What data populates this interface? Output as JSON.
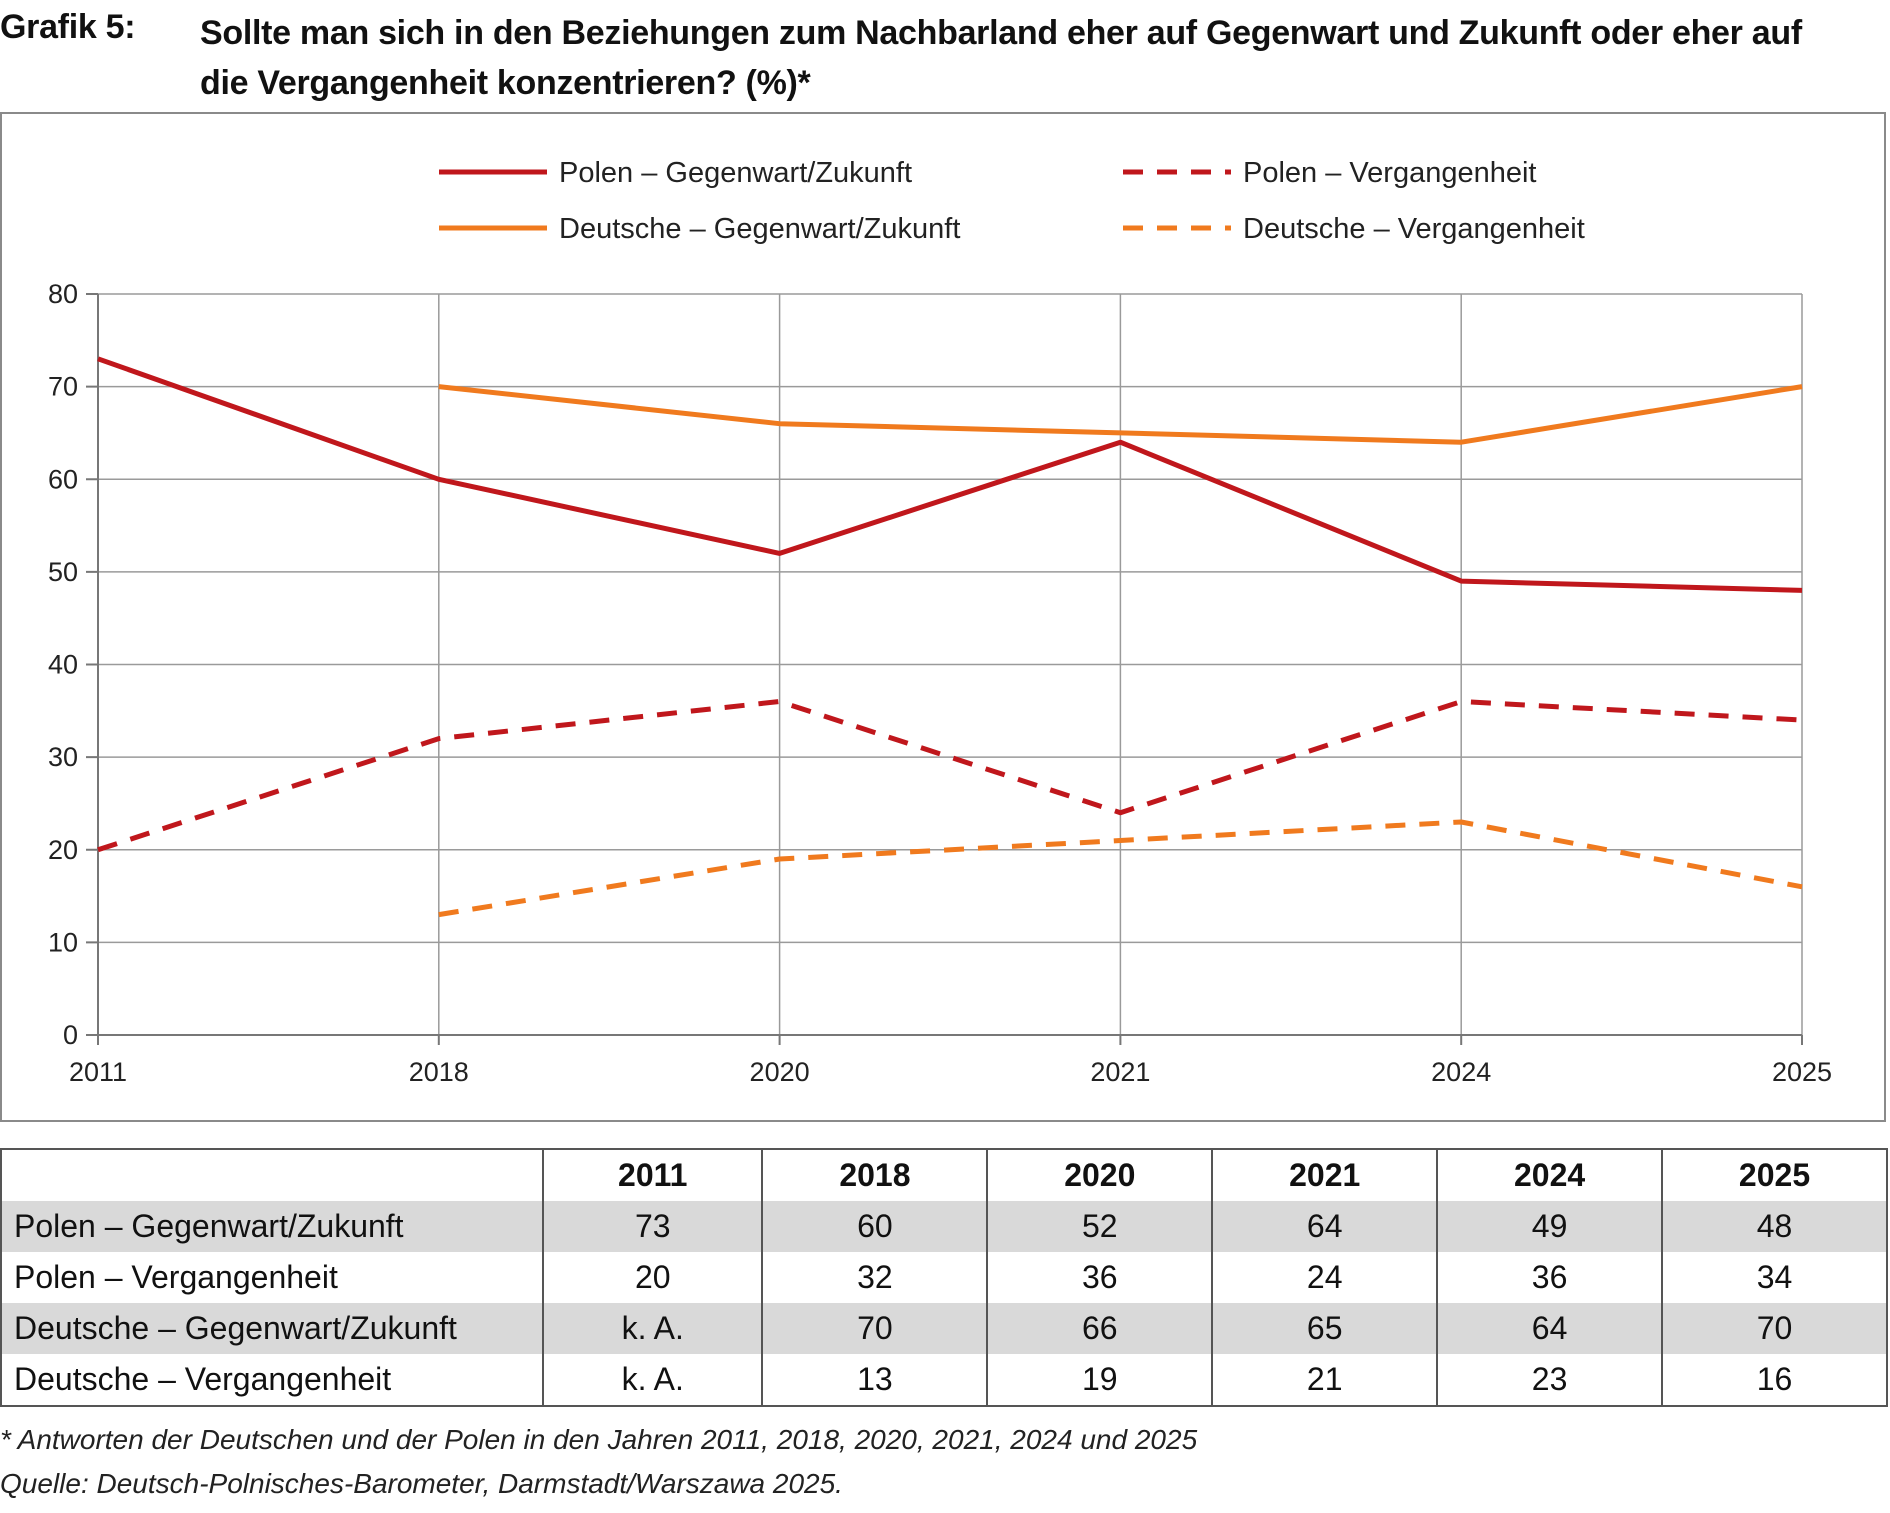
{
  "header": {
    "label": "Grafik 5:",
    "title_line1": "Sollte man sich in den Beziehungen zum Nachbarland eher auf Gegenwart und Zukunft oder eher auf",
    "title_line2": "die Vergangenheit konzentrieren? (%)*"
  },
  "chart_data": {
    "type": "line",
    "title": "Sollte man sich in den Beziehungen zum Nachbarland eher auf Gegenwart und Zukunft oder eher auf die Vergangenheit konzentrieren? (%)*",
    "categories": [
      "2011",
      "2018",
      "2020",
      "2021",
      "2024",
      "2025"
    ],
    "ylim": [
      0,
      80
    ],
    "yticks": [
      "0",
      "10",
      "20",
      "30",
      "40",
      "50",
      "60",
      "70",
      "80"
    ],
    "grid": true,
    "legend_position": "top",
    "series": [
      {
        "name": "Polen – Gegenwart/Zukunft",
        "values": [
          73,
          60,
          52,
          64,
          49,
          48
        ],
        "color": "#c0171c",
        "style": "solid"
      },
      {
        "name": "Polen – Vergangenheit",
        "values": [
          20,
          32,
          36,
          24,
          36,
          34
        ],
        "color": "#c0171c",
        "style": "dashed"
      },
      {
        "name": "Deutsche – Gegenwart/Zukunft",
        "values": [
          null,
          70,
          66,
          65,
          64,
          70
        ],
        "color": "#f07a1e",
        "style": "solid"
      },
      {
        "name": "Deutsche – Vergangenheit",
        "values": [
          null,
          13,
          19,
          21,
          23,
          16
        ],
        "color": "#f07a1e",
        "style": "dashed"
      }
    ]
  },
  "table": {
    "headers": [
      "2011",
      "2018",
      "2020",
      "2021",
      "2024",
      "2025"
    ],
    "rows": [
      {
        "label": "Polen – Gegenwart/Zukunft",
        "cells": [
          "73",
          "60",
          "52",
          "64",
          "49",
          "48"
        ]
      },
      {
        "label": "Polen – Vergangenheit",
        "cells": [
          "20",
          "32",
          "36",
          "24",
          "36",
          "34"
        ]
      },
      {
        "label": "Deutsche – Gegenwart/Zukunft",
        "cells": [
          "k. A.",
          "70",
          "66",
          "65",
          "64",
          "70"
        ]
      },
      {
        "label": "Deutsche – Vergangenheit",
        "cells": [
          "k. A.",
          "13",
          "19",
          "21",
          "23",
          "16"
        ]
      }
    ]
  },
  "footnotes": {
    "note": "* Antworten der Deutschen und der Polen in den Jahren 2011, 2018, 2020, 2021, 2024 und 2025",
    "source": "Quelle: Deutsch-Polnisches-Barometer, Darmstadt/Warszawa 2025."
  }
}
